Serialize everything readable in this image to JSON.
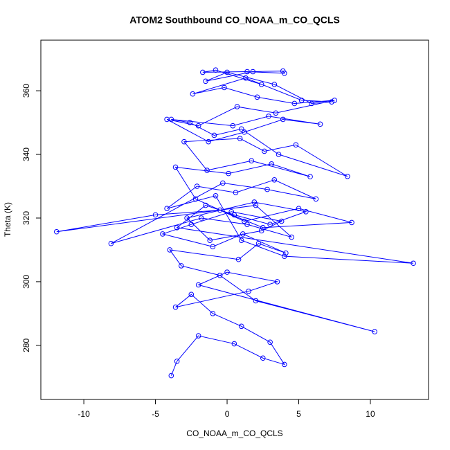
{
  "chart_data": {
    "type": "line",
    "title": "ATOM2 Southbound CO_NOAA_m_CO_QCLS",
    "x_label": "CO_NOAA_m_CO_QCLS",
    "y_label": "Theta (K)",
    "color": "#0000ff",
    "marker": "circle",
    "xlim": [
      -13.0,
      14.06
    ],
    "ylim": [
      263.0,
      375.9
    ],
    "xticks": [
      -10,
      -5,
      0,
      5,
      10
    ],
    "yticks": [
      280,
      300,
      320,
      340,
      360
    ],
    "x": [
      -3.9,
      -3.5,
      -2.0,
      0.5,
      2.5,
      4.0,
      3.0,
      1.0,
      -1.0,
      -2.5,
      -3.6,
      1.5,
      3.5,
      0.0,
      -2.0,
      10.3,
      2.0,
      -0.5,
      -3.2,
      -4.0,
      0.8,
      2.2,
      4.1,
      1.1,
      -1.0,
      -4.5,
      -2.5,
      0.3,
      3.8,
      2.4,
      -1.2,
      -2.8,
      1.9,
      5.5,
      3.0,
      0.5,
      -1.5,
      -3.5,
      13.0,
      4.0,
      1.0,
      -0.8,
      -4.2,
      -2.1,
      0.6,
      3.3,
      6.2,
      2.8,
      -0.3,
      -8.1,
      -1.8,
      1.4,
      4.5,
      2.0,
      -11.9,
      -5.0,
      -0.5,
      2.5,
      8.7,
      5.0,
      1.2,
      -2.2,
      -3.6,
      0.1,
      3.1,
      5.8,
      1.7,
      -1.4,
      -3.0,
      0.9,
      2.6,
      4.8,
      8.4,
      3.6,
      1.0,
      -0.9,
      -2.6,
      -3.9,
      0.4,
      2.9,
      6.5,
      3.9,
      1.2,
      -1.3,
      -4.2,
      -2.0,
      0.7,
      3.4,
      7.5,
      4.7,
      2.1,
      -0.2,
      -2.4,
      1.3,
      5.2,
      7.3,
      5.9,
      3.3,
      0.0,
      -1.5,
      1.8,
      3.9,
      4.0,
      1.4,
      -1.7,
      -0.8,
      2.4
    ],
    "values": [
      270.5,
      275,
      283,
      280.5,
      276,
      274,
      281,
      286,
      290,
      296,
      292,
      297,
      300,
      303,
      299,
      284.3,
      294,
      302,
      305,
      310,
      307,
      312,
      309,
      315,
      311,
      315,
      318,
      322,
      319,
      316,
      313,
      320,
      325,
      322,
      318,
      321,
      324,
      317,
      305.8,
      308,
      313,
      327,
      323,
      330,
      328,
      332,
      326,
      329,
      331,
      312,
      320,
      318,
      314,
      324,
      315.7,
      321,
      322.5,
      317,
      318.6,
      323,
      319,
      326,
      336,
      334,
      337,
      333,
      338,
      335,
      344,
      345,
      341,
      343,
      333.1,
      340,
      348,
      346,
      350,
      351,
      349,
      352,
      349.5,
      351,
      347,
      344,
      351,
      349,
      355,
      353,
      357,
      356,
      358,
      361,
      359,
      364,
      357,
      356.5,
      356,
      362,
      365.8,
      363,
      366,
      366.2,
      365.5,
      366,
      365.8,
      366.5,
      362
    ]
  }
}
